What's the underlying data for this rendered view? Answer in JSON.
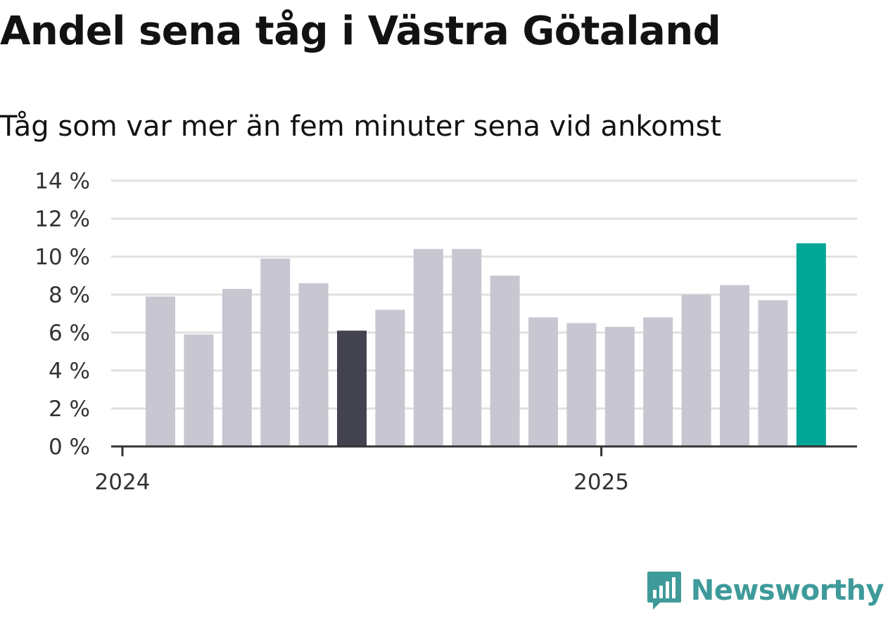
{
  "title": "Andel sena tåg i Västra Götaland",
  "subtitle": "Tåg som var mer än fem minuter sena vid ankomst",
  "brand": "Newsworthy",
  "colors": {
    "bar_default": "#c8c7d1",
    "bar_highlight_dark": "#43424f",
    "bar_highlight_latest": "#00a596",
    "grid": "#e0e0e0",
    "axis": "#333333",
    "brand": "#3f9a9a"
  },
  "chart_data": {
    "type": "bar",
    "title": "Andel sena tåg i Västra Götaland",
    "subtitle": "Tåg som var mer än fem minuter sena vid ankomst",
    "xlabel": "",
    "ylabel": "",
    "ylim": [
      0,
      14
    ],
    "yticks": [
      0,
      2,
      4,
      6,
      8,
      10,
      12,
      14
    ],
    "ytick_labels": [
      "0 %",
      "2 %",
      "4 %",
      "6 %",
      "8 %",
      "10 %",
      "12 %",
      "14 %"
    ],
    "xtick_labels": [
      {
        "label": "2024",
        "at_index": 0
      },
      {
        "label": "2025",
        "at_index": 12
      }
    ],
    "values": [
      7.9,
      5.9,
      8.3,
      9.9,
      8.6,
      6.1,
      7.2,
      10.4,
      10.4,
      9.0,
      6.8,
      6.5,
      6.3,
      6.8,
      8.0,
      8.5,
      7.7,
      10.7
    ],
    "highlight_dark_index": 5,
    "highlight_latest_index": 17,
    "grid": true,
    "legend": "none"
  }
}
